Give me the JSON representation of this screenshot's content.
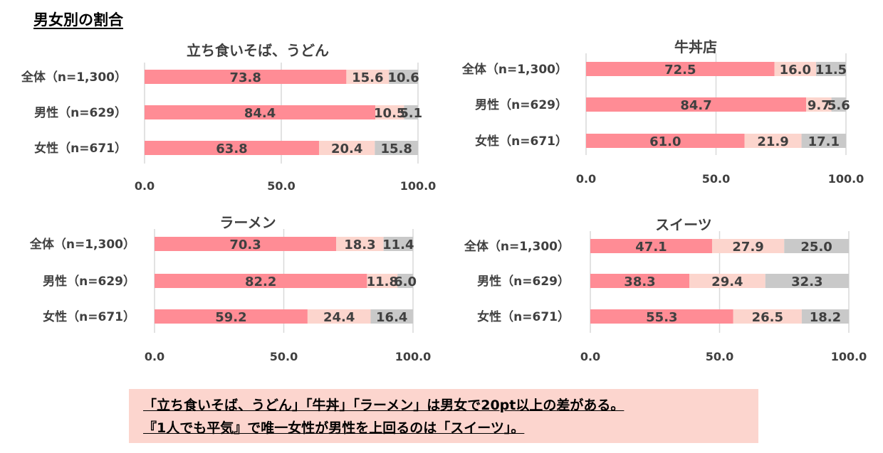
{
  "main_title": "男女別の割合",
  "colors": {
    "segment1": "#ff8c95",
    "segment2": "#fcd5cd",
    "segment3": "#c9c9c9",
    "text": "#404040",
    "grid": "#d9d9d9"
  },
  "chart_data": [
    {
      "type": "bar",
      "orientation": "horizontal",
      "stacked": true,
      "title": "立ち食いそば、うどん",
      "categories": [
        "全体（n=1,300）",
        "男性（n=629）",
        "女性（n=671）"
      ],
      "series": [
        {
          "values": [
            73.8,
            84.4,
            63.8
          ]
        },
        {
          "values": [
            15.6,
            10.5,
            20.4
          ]
        },
        {
          "values": [
            10.6,
            5.1,
            15.8
          ]
        }
      ],
      "xlim": [
        0,
        100
      ],
      "xticks": [
        "0.0",
        "50.0",
        "100.0"
      ],
      "grid": true
    },
    {
      "type": "bar",
      "orientation": "horizontal",
      "stacked": true,
      "title": "牛丼店",
      "categories": [
        "全体（n=1,300）",
        "男性（n=629）",
        "女性（n=671）"
      ],
      "series": [
        {
          "values": [
            72.5,
            84.7,
            61.0
          ]
        },
        {
          "values": [
            16.0,
            9.7,
            21.9
          ]
        },
        {
          "values": [
            11.5,
            5.6,
            17.1
          ]
        }
      ],
      "xlim": [
        0,
        100
      ],
      "xticks": [
        "0.0",
        "50.0",
        "100.0"
      ],
      "grid": true
    },
    {
      "type": "bar",
      "orientation": "horizontal",
      "stacked": true,
      "title": "ラーメン",
      "categories": [
        "全体（n=1,300）",
        "男性（n=629）",
        "女性（n=671）"
      ],
      "series": [
        {
          "values": [
            70.3,
            82.2,
            59.2
          ]
        },
        {
          "values": [
            18.3,
            11.8,
            24.4
          ]
        },
        {
          "values": [
            11.4,
            6.0,
            16.4
          ]
        }
      ],
      "xlim": [
        0,
        100
      ],
      "xticks": [
        "0.0",
        "50.0",
        "100.0"
      ],
      "grid": true
    },
    {
      "type": "bar",
      "orientation": "horizontal",
      "stacked": true,
      "title": "スイーツ",
      "categories": [
        "全体（n=1,300）",
        "男性（n=629）",
        "女性（n=671）"
      ],
      "series": [
        {
          "values": [
            47.1,
            38.3,
            55.3
          ]
        },
        {
          "values": [
            27.9,
            29.4,
            26.5
          ]
        },
        {
          "values": [
            25.0,
            32.3,
            18.2
          ]
        }
      ],
      "xlim": [
        0,
        100
      ],
      "xticks": [
        "0.0",
        "50.0",
        "100.0"
      ],
      "grid": true
    }
  ],
  "note": {
    "line1": "「立ち食いそば、うどん」「牛丼」「ラーメン」は男女で20pt以上の差がある。",
    "line2": "『1人でも平気』で唯一女性が男性を上回るのは「スイーツ」。"
  }
}
